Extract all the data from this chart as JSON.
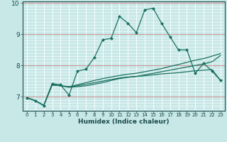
{
  "title": "",
  "xlabel": "Humidex (Indice chaleur)",
  "bg_color": "#c8e8e8",
  "line_color": "#1a7060",
  "grid_color": "#aad4d4",
  "red_line_color": "#d49090",
  "x": [
    0,
    1,
    2,
    3,
    4,
    5,
    6,
    7,
    8,
    9,
    10,
    11,
    12,
    13,
    14,
    15,
    16,
    17,
    18,
    19,
    20,
    21,
    22,
    23
  ],
  "y_main": [
    6.97,
    6.87,
    6.72,
    7.42,
    7.38,
    7.05,
    7.82,
    7.88,
    8.25,
    8.82,
    8.87,
    9.57,
    9.35,
    9.05,
    9.78,
    9.83,
    9.35,
    8.92,
    8.5,
    8.5,
    7.75,
    8.07,
    7.82,
    7.52
  ],
  "y_line1": [
    6.97,
    6.87,
    6.72,
    7.38,
    7.35,
    7.32,
    7.35,
    7.4,
    7.45,
    7.5,
    7.55,
    7.6,
    7.63,
    7.65,
    7.67,
    7.7,
    7.73,
    7.75,
    7.77,
    7.8,
    7.83,
    7.85,
    7.87,
    7.52
  ],
  "y_line2": [
    6.97,
    6.87,
    6.72,
    7.38,
    7.35,
    7.32,
    7.38,
    7.45,
    7.52,
    7.58,
    7.63,
    7.68,
    7.72,
    7.75,
    7.8,
    7.85,
    7.9,
    7.97,
    8.03,
    8.1,
    8.17,
    8.22,
    8.3,
    8.38
  ],
  "y_line3": [
    6.97,
    6.87,
    6.72,
    7.38,
    7.35,
    7.3,
    7.32,
    7.35,
    7.4,
    7.45,
    7.52,
    7.58,
    7.62,
    7.65,
    7.7,
    7.75,
    7.8,
    7.85,
    7.9,
    7.95,
    8.0,
    8.05,
    8.12,
    8.32
  ],
  "ylim": [
    6.55,
    10.05
  ],
  "xlim": [
    -0.5,
    23.5
  ],
  "yticks": [
    7,
    8,
    9,
    10
  ],
  "xticks": [
    0,
    1,
    2,
    3,
    4,
    5,
    6,
    7,
    8,
    9,
    10,
    11,
    12,
    13,
    14,
    15,
    16,
    17,
    18,
    19,
    20,
    21,
    22,
    23
  ]
}
